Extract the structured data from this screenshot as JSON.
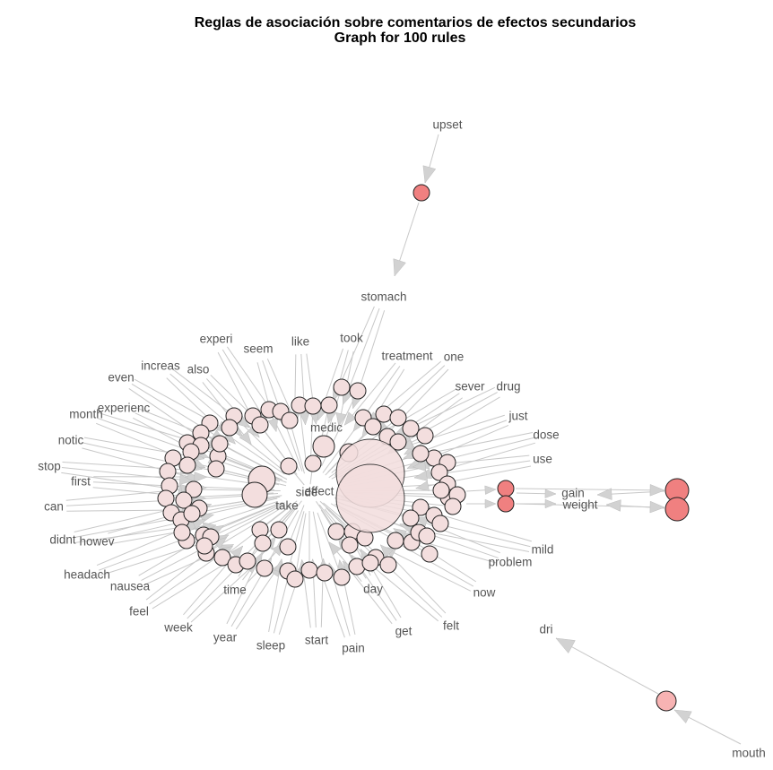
{
  "title": {
    "line1": "Reglas de asociación sobre comentarios de efectos secundarios",
    "line2": "Graph for 100 rules"
  },
  "colors": {
    "node_light": "#f3dede",
    "node_strong": "#f08080",
    "node_medium": "#f7b3b3",
    "edge": "#c8c8c8",
    "label": "#555555"
  },
  "item_labels": [
    "upset",
    "stomach",
    "experi",
    "seem",
    "like",
    "took",
    "treatment",
    "one",
    "even",
    "increas",
    "also",
    "sever",
    "drug",
    "month",
    "experienc",
    "just",
    "notic",
    "dose",
    "stop",
    "use",
    "first",
    "medic",
    "side",
    "effect",
    "take",
    "gain",
    "weight",
    "can",
    "didnt",
    "howev",
    "mild",
    "problem",
    "headach",
    "nausea",
    "time",
    "day",
    "now",
    "feel",
    "week",
    "year",
    "sleep",
    "start",
    "pain",
    "get",
    "felt",
    "dri",
    "mouth"
  ]
}
